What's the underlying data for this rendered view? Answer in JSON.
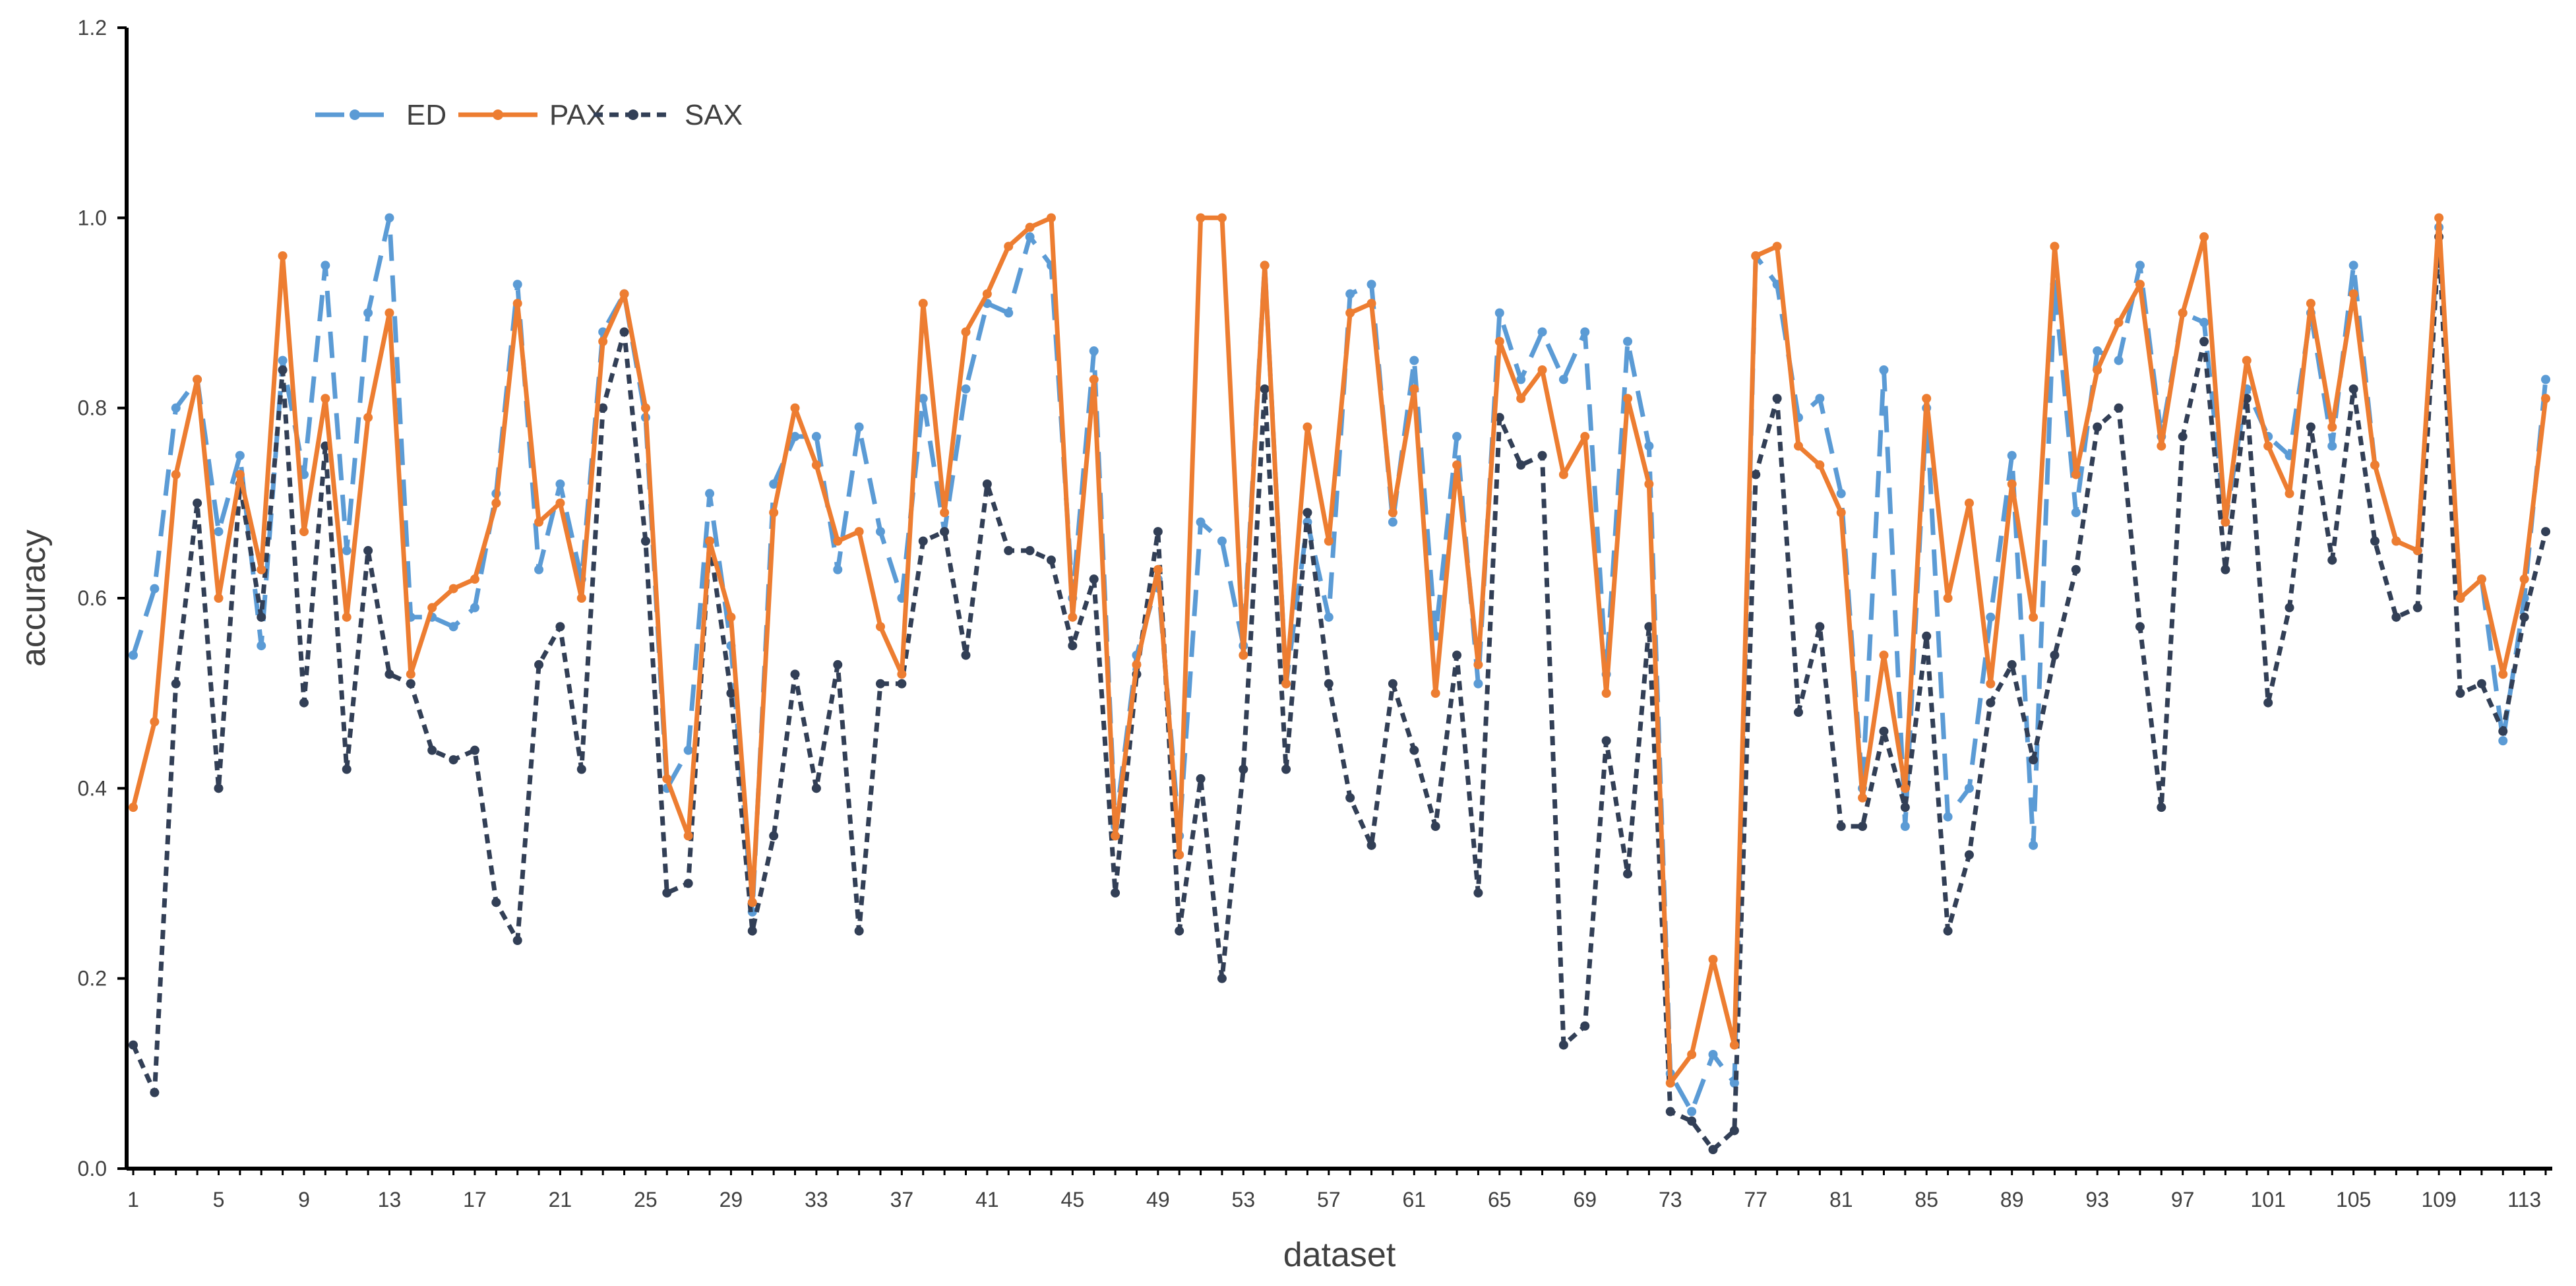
{
  "chart_data": {
    "type": "line",
    "xlabel": "dataset",
    "ylabel": "accuracy",
    "ylim": [
      0,
      1.2
    ],
    "yticks": [
      "0.0",
      "0.2",
      "0.4",
      "0.6",
      "0.8",
      "1.0",
      "1.2"
    ],
    "xticks": [
      1,
      5,
      9,
      13,
      17,
      21,
      25,
      29,
      33,
      37,
      41,
      45,
      49,
      53,
      57,
      61,
      65,
      69,
      73,
      77,
      81,
      85,
      89,
      93,
      97,
      101,
      105,
      109,
      113
    ],
    "grid": false,
    "legend_position": "top-left",
    "x": [
      1,
      2,
      3,
      4,
      5,
      6,
      7,
      8,
      9,
      10,
      11,
      12,
      13,
      14,
      15,
      16,
      17,
      18,
      19,
      20,
      21,
      22,
      23,
      24,
      25,
      26,
      27,
      28,
      29,
      30,
      31,
      32,
      33,
      34,
      35,
      36,
      37,
      38,
      39,
      40,
      41,
      42,
      43,
      44,
      45,
      46,
      47,
      48,
      49,
      50,
      51,
      52,
      53,
      54,
      55,
      56,
      57,
      58,
      59,
      60,
      61,
      62,
      63,
      64,
      65,
      66,
      67,
      68,
      69,
      70,
      71,
      72,
      73,
      74,
      75,
      76,
      77,
      78,
      79,
      80,
      81,
      82,
      83,
      84,
      85,
      86,
      87,
      88,
      89,
      90,
      91,
      92,
      93,
      94,
      95,
      96,
      97,
      98,
      99,
      100,
      101,
      102,
      103,
      104,
      105,
      106,
      107,
      108,
      109,
      110,
      111,
      112,
      113,
      114
    ],
    "series": [
      {
        "name": "ED",
        "color": "#5b9bd5",
        "style": "dashed",
        "values": [
          0.54,
          0.61,
          0.8,
          0.83,
          0.67,
          0.75,
          0.55,
          0.85,
          0.73,
          0.95,
          0.65,
          0.9,
          1.0,
          0.58,
          0.58,
          0.57,
          0.59,
          0.71,
          0.93,
          0.63,
          0.72,
          0.62,
          0.88,
          0.92,
          0.79,
          0.4,
          0.44,
          0.71,
          0.55,
          0.27,
          0.72,
          0.77,
          0.77,
          0.63,
          0.78,
          0.67,
          0.6,
          0.81,
          0.67,
          0.82,
          0.91,
          0.9,
          0.98,
          0.95,
          0.6,
          0.86,
          0.36,
          0.54,
          0.62,
          0.35,
          0.68,
          0.66,
          0.55,
          0.95,
          0.51,
          0.68,
          0.58,
          0.92,
          0.93,
          0.68,
          0.85,
          0.56,
          0.77,
          0.51,
          0.9,
          0.83,
          0.88,
          0.83,
          0.88,
          0.52,
          0.87,
          0.76,
          0.1,
          0.06,
          0.12,
          0.09,
          0.96,
          0.93,
          0.79,
          0.81,
          0.71,
          0.4,
          0.84,
          0.36,
          0.8,
          0.37,
          0.4,
          0.58,
          0.75,
          0.34,
          0.93,
          0.69,
          0.86,
          0.85,
          0.95,
          0.77,
          0.9,
          0.89,
          0.68,
          0.82,
          0.77,
          0.75,
          0.9,
          0.76,
          0.95,
          0.74,
          0.66,
          0.65,
          0.99,
          0.6,
          0.62,
          0.45,
          0.6,
          0.83
        ]
      },
      {
        "name": "PAX",
        "color": "#ed7d31",
        "style": "solid",
        "values": [
          0.38,
          0.47,
          0.73,
          0.83,
          0.6,
          0.73,
          0.63,
          0.96,
          0.67,
          0.81,
          0.58,
          0.79,
          0.9,
          0.52,
          0.59,
          0.61,
          0.62,
          0.7,
          0.91,
          0.68,
          0.7,
          0.6,
          0.87,
          0.92,
          0.8,
          0.41,
          0.35,
          0.66,
          0.58,
          0.28,
          0.69,
          0.8,
          0.74,
          0.66,
          0.67,
          0.57,
          0.52,
          0.91,
          0.69,
          0.88,
          0.92,
          0.97,
          0.99,
          1.0,
          0.58,
          0.83,
          0.35,
          0.53,
          0.63,
          0.33,
          1.0,
          1.0,
          0.54,
          0.95,
          0.51,
          0.78,
          0.66,
          0.9,
          0.91,
          0.69,
          0.82,
          0.5,
          0.74,
          0.53,
          0.87,
          0.81,
          0.84,
          0.73,
          0.77,
          0.5,
          0.81,
          0.72,
          0.09,
          0.12,
          0.22,
          0.13,
          0.96,
          0.97,
          0.76,
          0.74,
          0.69,
          0.39,
          0.54,
          0.4,
          0.81,
          0.6,
          0.7,
          0.51,
          0.72,
          0.58,
          0.97,
          0.73,
          0.84,
          0.89,
          0.93,
          0.76,
          0.9,
          0.98,
          0.68,
          0.85,
          0.76,
          0.71,
          0.91,
          0.78,
          0.92,
          0.74,
          0.66,
          0.65,
          1.0,
          0.6,
          0.62,
          0.52,
          0.62,
          0.81
        ]
      },
      {
        "name": "SAX",
        "color": "#323f56",
        "style": "dotted",
        "values": [
          0.13,
          0.08,
          0.51,
          0.7,
          0.4,
          0.72,
          0.58,
          0.84,
          0.49,
          0.76,
          0.42,
          0.65,
          0.52,
          0.51,
          0.44,
          0.43,
          0.44,
          0.28,
          0.24,
          0.53,
          0.57,
          0.42,
          0.8,
          0.88,
          0.66,
          0.29,
          0.3,
          0.66,
          0.5,
          0.25,
          0.35,
          0.52,
          0.4,
          0.53,
          0.25,
          0.51,
          0.51,
          0.66,
          0.67,
          0.54,
          0.72,
          0.65,
          0.65,
          0.64,
          0.55,
          0.62,
          0.29,
          0.52,
          0.67,
          0.25,
          0.41,
          0.2,
          0.42,
          0.82,
          0.42,
          0.69,
          0.51,
          0.39,
          0.34,
          0.51,
          0.44,
          0.36,
          0.54,
          0.29,
          0.79,
          0.74,
          0.75,
          0.13,
          0.15,
          0.45,
          0.31,
          0.57,
          0.06,
          0.05,
          0.02,
          0.04,
          0.73,
          0.81,
          0.48,
          0.57,
          0.36,
          0.36,
          0.46,
          0.38,
          0.56,
          0.25,
          0.33,
          0.49,
          0.53,
          0.43,
          0.54,
          0.63,
          0.78,
          0.8,
          0.57,
          0.38,
          0.77,
          0.87,
          0.63,
          0.81,
          0.49,
          0.59,
          0.78,
          0.64,
          0.82,
          0.66,
          0.58,
          0.59,
          0.98,
          0.5,
          0.51,
          0.46,
          0.58,
          0.67
        ]
      }
    ]
  }
}
